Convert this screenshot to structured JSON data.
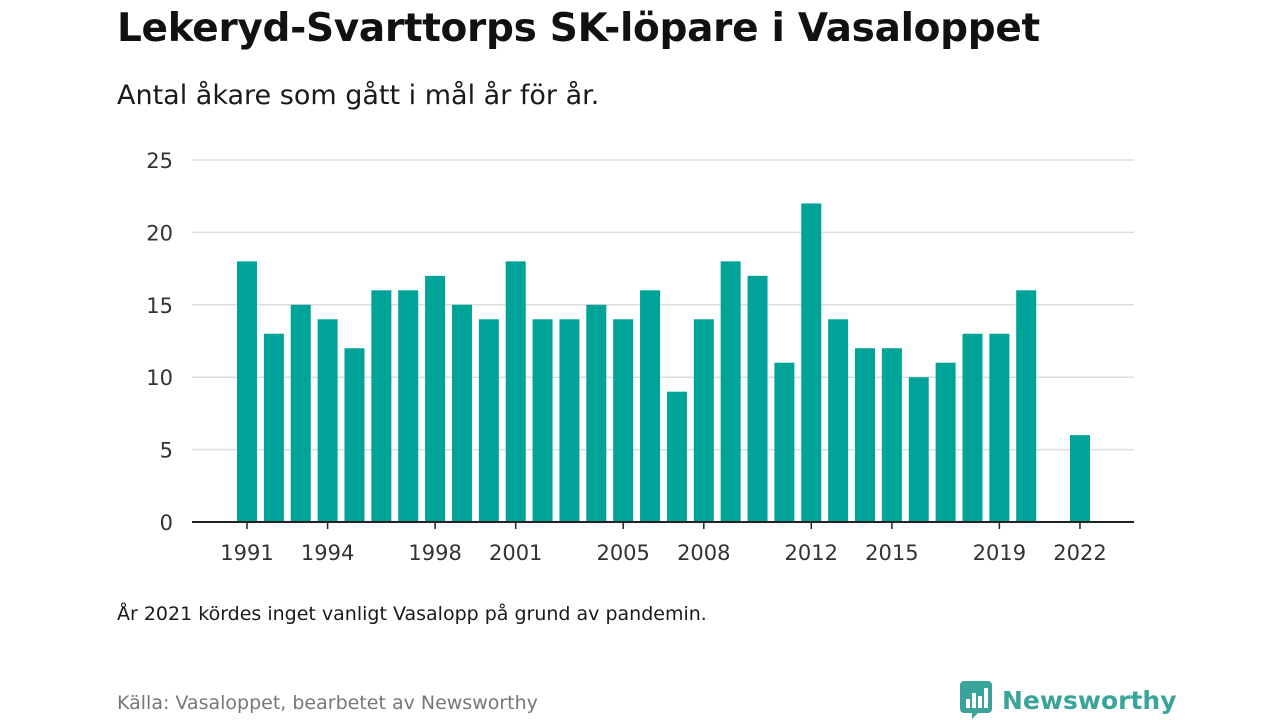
{
  "header": {
    "title": "Lekeryd-Svarttorps SK-löpare i Vasaloppet",
    "subtitle": "Antal åkare som gått i mål år för år."
  },
  "footer": {
    "note": "År 2021 kördes inget vanligt Vasalopp på grund av pandemin.",
    "source": "Källa: Vasaloppet, bearbetet av Newsworthy",
    "brand_name": "Newsworthy",
    "brand_icon": "newsworthy-logo-icon"
  },
  "colors": {
    "bar": "#00a398",
    "grid": "#dddddd",
    "axis": "#222222",
    "brand": "#3aa39a"
  },
  "chart_data": {
    "type": "bar",
    "categories": [
      "1991",
      "1992",
      "1993",
      "1994",
      "1995",
      "1996",
      "1997",
      "1998",
      "1999",
      "2000",
      "2001",
      "2002",
      "2003",
      "2004",
      "2005",
      "2006",
      "2007",
      "2008",
      "2009",
      "2010",
      "2011",
      "2012",
      "2013",
      "2014",
      "2015",
      "2016",
      "2017",
      "2018",
      "2019",
      "2020",
      "2021",
      "2022"
    ],
    "values": [
      18,
      13,
      15,
      14,
      12,
      16,
      16,
      17,
      15,
      14,
      18,
      14,
      14,
      15,
      14,
      16,
      9,
      14,
      18,
      17,
      11,
      22,
      14,
      12,
      12,
      10,
      11,
      13,
      13,
      16,
      null,
      6
    ],
    "x_tick_labels": [
      "1991",
      "1994",
      "1998",
      "2001",
      "2005",
      "2008",
      "2012",
      "2015",
      "2019",
      "2022"
    ],
    "y_ticks": [
      0,
      5,
      10,
      15,
      20,
      25
    ],
    "ylim": [
      0,
      25
    ],
    "grid": true,
    "legend": "none"
  }
}
